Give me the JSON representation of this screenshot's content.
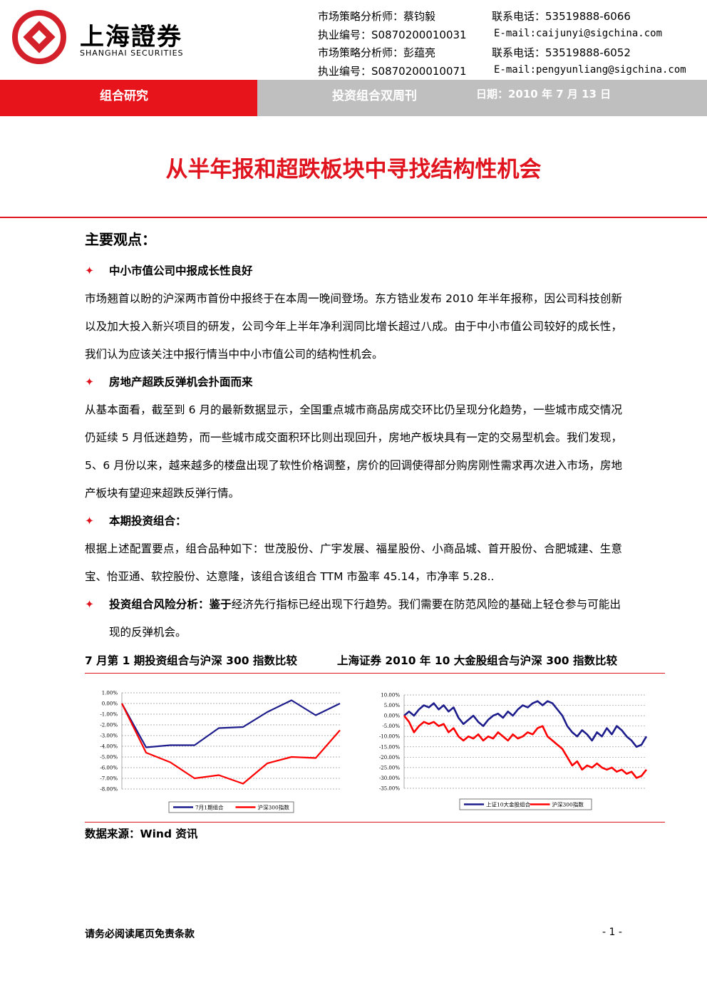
{
  "header": {
    "logo_cn": "上海證券",
    "logo_en": "SHANGHAI SECURITIES",
    "analysts": [
      {
        "role": "市场策略分析师：蔡钧毅",
        "phone": "联系电话：53519888-6066",
        "id": "执业编号：S0870200010031",
        "email": "E-mail:caijunyi@sigchina.com"
      },
      {
        "role": "市场策略分析师：彭蕴亮",
        "phone": "联系电话：53519888-6052",
        "id": "执业编号：S0870200010071",
        "email": "E-mail:pengyunliang@sigchina.com"
      }
    ]
  },
  "banner": {
    "section": "组合研究",
    "series": "投资组合双周刊",
    "date": "日期：2010 年 7 月 13 日"
  },
  "title": "从半年报和超跌板块中寻找结构性机会",
  "summary_heading": "主要观点：",
  "points": [
    {
      "title": "中小市值公司中报成长性良好",
      "text": "市场翘首以盼的沪深两市首份中报终于在本周一晚间登场。东方锆业发布 2010 年半年报称，因公司科技创新以及加大投入新兴项目的研发，公司今年上半年净利润同比增长超过八成。由于中小市值公司较好的成长性，我们认为应该关注中报行情当中中小市值公司的结构性机会。"
    },
    {
      "title": "房地产超跌反弹机会扑面而来",
      "text": "从基本面看，截至到 6 月的最新数据显示，全国重点城市商品房成交环比仍呈现分化趋势，一些城市成交情况仍延续 5 月低迷趋势，而一些城市成交面积环比则出现回升，房地产板块具有一定的交易型机会。我们发现，5、6 月份以来，越来越多的楼盘出现了软性价格调整，房价的回调使得部分购房刚性需求再次进入市场，房地产板块有望迎来超跌反弹行情。"
    },
    {
      "title": "本期投资组合：",
      "text": "根据上述配置要点，组合品种如下：世茂股份、广宇发展、福星股份、小商品城、首开股份、合肥城建、生意宝、怡亚通、软控股份、达意隆，该组合该组合 TTM 市盈率 45.14，市净率 5.28.."
    },
    {
      "title": "投资组合风险分析：鉴于",
      "text": "经济先行指标已经出现下行趋势。我们需要在防范风险的基础上轻仓参与可能出现的反弹机会。"
    }
  ],
  "chart_data": [
    {
      "type": "line",
      "title": "7 月第 1 期投资组合与沪深 300 指数比较",
      "categories": [
        null,
        null,
        null,
        null,
        null,
        null,
        null,
        null,
        null,
        null
      ],
      "series": [
        {
          "name": "7月1期组合",
          "color": "#1c1c8c",
          "values": [
            0,
            -4.1,
            -3.9,
            -3.9,
            -2.3,
            -2.2,
            -0.8,
            0.3,
            -1.1,
            0.0
          ]
        },
        {
          "name": "沪深300指数",
          "color": "#ff0000",
          "values": [
            0,
            -4.6,
            -5.5,
            -7.0,
            -6.7,
            -7.5,
            -5.6,
            -5.0,
            -5.1,
            -2.5
          ]
        }
      ],
      "ylim": [
        -8,
        1
      ],
      "yticks": [
        {
          "value": -8,
          "label": "-8.00%"
        },
        {
          "value": -7,
          "label": "-7.00%"
        },
        {
          "value": -6,
          "label": "-6.00%"
        },
        {
          "value": -5,
          "label": "-5.00%"
        },
        {
          "value": -4,
          "label": "-4.00%"
        },
        {
          "value": -3,
          "label": "-3.00%"
        },
        {
          "value": -2,
          "label": "-2.00%"
        },
        {
          "value": -1,
          "label": "-1.00%"
        },
        {
          "value": 0,
          "label": "0.00%"
        },
        {
          "value": 1,
          "label": "1.00%"
        }
      ],
      "grid": true
    },
    {
      "type": "line",
      "title": "上海证券 2010 年 10 大金股组合与沪深 300 指数比较",
      "categories": [
        null,
        null,
        null,
        null,
        null,
        null,
        null,
        null,
        null,
        null,
        null,
        null,
        null,
        null,
        null,
        null,
        null,
        null,
        null,
        null,
        null,
        null,
        null,
        null,
        null,
        null,
        null,
        null,
        null,
        null,
        null,
        null,
        null,
        null,
        null,
        null,
        null,
        null,
        null,
        null,
        null,
        null,
        null,
        null,
        null,
        null,
        null,
        null,
        null,
        null
      ],
      "series": [
        {
          "name": "上证10大金股组合",
          "color": "#1c1c8c",
          "values": [
            0,
            2,
            0,
            3,
            5,
            4,
            6,
            3,
            5,
            2,
            4,
            -1,
            -4,
            -2,
            0,
            -3,
            -5,
            -2,
            0,
            1,
            -1,
            2,
            0,
            3,
            5,
            4,
            6,
            7,
            5,
            7,
            6,
            3,
            0,
            -5,
            -8,
            -10,
            -7,
            -9,
            -12,
            -8,
            -10,
            -6,
            -9,
            -5,
            -7,
            -10,
            -12,
            -15,
            -14,
            -10
          ]
        },
        {
          "name": "沪深300指数",
          "color": "#ff0000",
          "values": [
            0,
            -3,
            -8,
            -5,
            -3,
            -4,
            -3,
            -5,
            -4,
            -8,
            -6,
            -10,
            -12,
            -10,
            -11,
            -9,
            -12,
            -10,
            -11,
            -8,
            -10,
            -12,
            -9,
            -11,
            -10,
            -8,
            -9,
            -6,
            -5,
            -10,
            -12,
            -14,
            -16,
            -20,
            -24,
            -22,
            -26,
            -24,
            -25,
            -23,
            -25,
            -26,
            -25,
            -27,
            -26,
            -28,
            -27,
            -30,
            -29,
            -26
          ]
        }
      ],
      "ylim": [
        -35,
        10
      ],
      "yticks": [
        {
          "value": -35,
          "label": "-35.00%"
        },
        {
          "value": -30,
          "label": "-30.00%"
        },
        {
          "value": -25,
          "label": "-25.00%"
        },
        {
          "value": -20,
          "label": "-20.00%"
        },
        {
          "value": -15,
          "label": "-15.00%"
        },
        {
          "value": -10,
          "label": "-10.00%"
        },
        {
          "value": -5,
          "label": "-5.00%"
        },
        {
          "value": 0,
          "label": "0.00%"
        },
        {
          "value": 5,
          "label": "5.00%"
        },
        {
          "value": 10,
          "label": "10.00%"
        }
      ],
      "grid": true
    }
  ],
  "source": "数据来源：Wind 资讯",
  "footer": {
    "disclaimer": "请务必阅读尾页免责条款",
    "page": "- 1 -"
  }
}
